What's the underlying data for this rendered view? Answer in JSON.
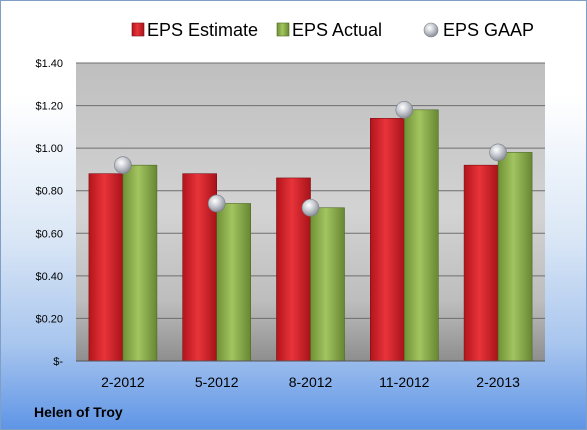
{
  "chart_data": {
    "type": "bar",
    "categories": [
      "2-2012",
      "5-2012",
      "8-2012",
      "11-2012",
      "2-2013"
    ],
    "series": [
      {
        "name": "EPS Estimate",
        "kind": "bar",
        "color": "#d9232b",
        "values": [
          0.88,
          0.88,
          0.86,
          1.14,
          0.92
        ]
      },
      {
        "name": "EPS Actual",
        "kind": "bar",
        "color": "#8db04a",
        "values": [
          0.92,
          0.74,
          0.72,
          1.18,
          0.98
        ]
      },
      {
        "name": "EPS GAAP",
        "kind": "marker",
        "color": "#b8bcc4",
        "values": [
          0.92,
          0.74,
          0.72,
          1.18,
          0.98
        ]
      }
    ],
    "ylim": [
      0,
      1.4
    ],
    "yticks": [
      0,
      0.2,
      0.4,
      0.6,
      0.8,
      1.0,
      1.2,
      1.4
    ],
    "ytick_labels": [
      "$-",
      "$0.20",
      "$0.40",
      "$0.60",
      "$0.80",
      "$1.00",
      "$1.20",
      "$1.40"
    ],
    "grid": true,
    "legend_position": "top"
  },
  "footer": {
    "company": "Helen of Troy"
  }
}
